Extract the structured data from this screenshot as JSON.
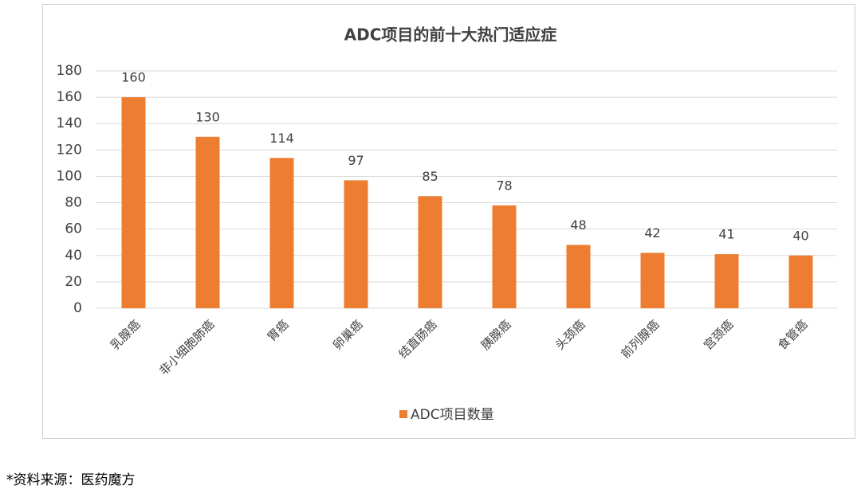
{
  "chart_data": {
    "type": "bar",
    "title": "ADC项目的前十大热门适应症",
    "categories": [
      "乳腺癌",
      "非小细胞肺癌",
      "胃癌",
      "卵巢癌",
      "结直肠癌",
      "胰腺癌",
      "头颈癌",
      "前列腺癌",
      "宫颈癌",
      "食管癌"
    ],
    "series": [
      {
        "name": "ADC项目数量",
        "color": "#ed7d31",
        "values": [
          160,
          130,
          114,
          97,
          85,
          78,
          48,
          42,
          41,
          40
        ]
      }
    ],
    "ylim": [
      0,
      180
    ],
    "yticks": [
      0,
      20,
      40,
      60,
      80,
      100,
      120,
      140,
      160,
      180
    ],
    "grid": true,
    "legend": "bottom"
  },
  "source": "*资料来源：医药魔方"
}
